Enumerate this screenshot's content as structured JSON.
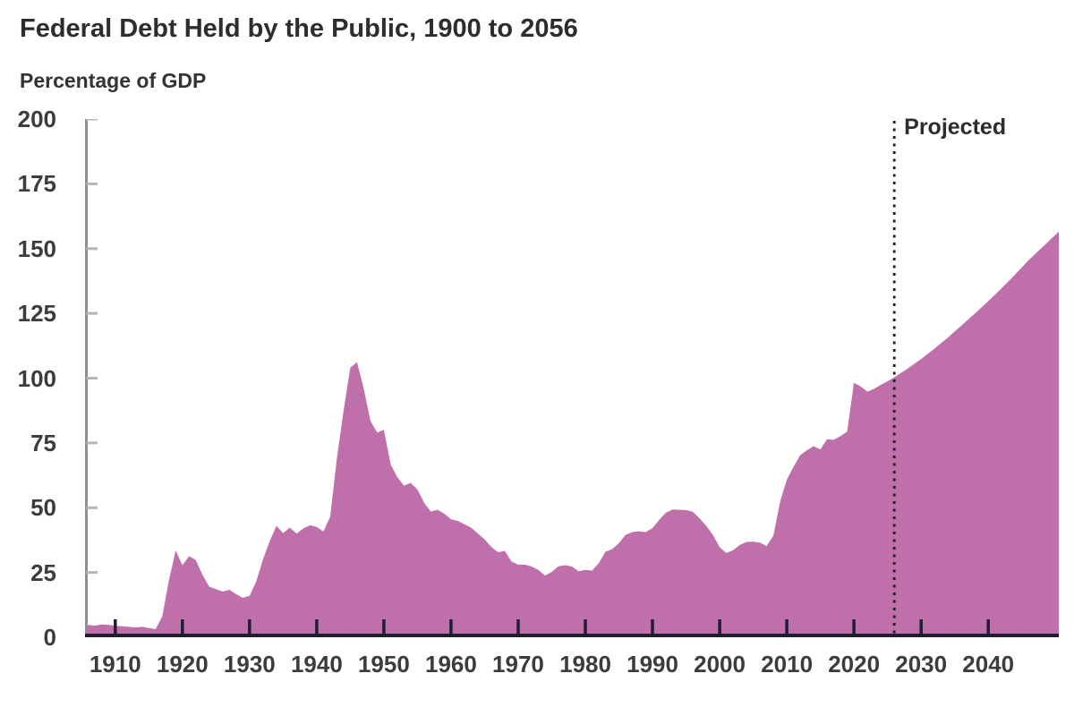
{
  "header": {
    "title": "Federal Debt Held by the Public, 1900 to 2056",
    "y_axis_title": "Percentage of GDP"
  },
  "chart_data": {
    "type": "area",
    "title": "Federal Debt Held by the Public, 1900 to 2056",
    "ylabel": "Percentage of GDP",
    "xlabel": "",
    "grid": false,
    "legend": "none",
    "ylim": [
      0,
      200
    ],
    "x_window": [
      1905.5,
      2050.5
    ],
    "projected_label": "Projected",
    "projected_year": 2026,
    "x_ticks": [
      1910,
      1920,
      1930,
      1940,
      1950,
      1960,
      1970,
      1980,
      1990,
      2000,
      2010,
      2020,
      2030,
      2040
    ],
    "x_tick_labels": [
      "1910",
      "1920",
      "1930",
      "1940",
      "1950",
      "1960",
      "1970",
      "1980",
      "1990",
      "2000",
      "2010",
      "2020",
      "2030",
      "2040"
    ],
    "y_tick_values": [
      200,
      175,
      150,
      125,
      100,
      75,
      50,
      25,
      0
    ],
    "y_tick_labels": [
      "200",
      "175",
      "150",
      "125",
      "100",
      "75",
      "50",
      "25",
      "0"
    ],
    "area_color": "#bf6fa9",
    "axis_color": "#221d35",
    "y_axis_color": "#8e8e8e",
    "y_tick_color": "#b5b5b5",
    "series": [
      {
        "name": "Federal debt held by the public (percentage of GDP)",
        "color": "#bf6fa9",
        "points": [
          [
            1900,
            6.3
          ],
          [
            1902,
            5.6
          ],
          [
            1904,
            5.0
          ],
          [
            1906,
            4.7
          ],
          [
            1907,
            4.5
          ],
          [
            1908,
            4.9
          ],
          [
            1909,
            4.8
          ],
          [
            1910,
            4.4
          ],
          [
            1911,
            4.2
          ],
          [
            1912,
            4.0
          ],
          [
            1913,
            3.8
          ],
          [
            1914,
            4.0
          ],
          [
            1915,
            3.6
          ],
          [
            1916,
            3.1
          ],
          [
            1917,
            8.0
          ],
          [
            1918,
            22.0
          ],
          [
            1919,
            33.5
          ],
          [
            1920,
            27.8
          ],
          [
            1921,
            31.3
          ],
          [
            1922,
            29.8
          ],
          [
            1923,
            24.0
          ],
          [
            1924,
            19.5
          ],
          [
            1925,
            18.6
          ],
          [
            1926,
            17.6
          ],
          [
            1927,
            18.3
          ],
          [
            1928,
            16.6
          ],
          [
            1929,
            15.2
          ],
          [
            1930,
            16.0
          ],
          [
            1931,
            21.5
          ],
          [
            1932,
            30.0
          ],
          [
            1933,
            37.0
          ],
          [
            1934,
            43.0
          ],
          [
            1935,
            40.2
          ],
          [
            1936,
            42.3
          ],
          [
            1937,
            40.0
          ],
          [
            1938,
            42.0
          ],
          [
            1939,
            43.2
          ],
          [
            1940,
            42.6
          ],
          [
            1941,
            40.8
          ],
          [
            1942,
            46.5
          ],
          [
            1943,
            69.0
          ],
          [
            1944,
            87.5
          ],
          [
            1945,
            104.0
          ],
          [
            1946,
            106.2
          ],
          [
            1947,
            96.0
          ],
          [
            1948,
            83.5
          ],
          [
            1949,
            79.0
          ],
          [
            1950,
            80.0
          ],
          [
            1951,
            66.8
          ],
          [
            1952,
            61.8
          ],
          [
            1953,
            58.5
          ],
          [
            1954,
            59.6
          ],
          [
            1955,
            57.0
          ],
          [
            1956,
            51.9
          ],
          [
            1957,
            48.5
          ],
          [
            1958,
            49.2
          ],
          [
            1959,
            47.7
          ],
          [
            1960,
            45.5
          ],
          [
            1961,
            44.9
          ],
          [
            1962,
            43.6
          ],
          [
            1963,
            42.3
          ],
          [
            1964,
            40.0
          ],
          [
            1965,
            37.8
          ],
          [
            1966,
            34.8
          ],
          [
            1967,
            32.8
          ],
          [
            1968,
            33.3
          ],
          [
            1969,
            29.2
          ],
          [
            1970,
            28.0
          ],
          [
            1971,
            28.0
          ],
          [
            1972,
            27.3
          ],
          [
            1973,
            26.0
          ],
          [
            1974,
            23.8
          ],
          [
            1975,
            25.2
          ],
          [
            1976,
            27.4
          ],
          [
            1977,
            27.8
          ],
          [
            1978,
            27.3
          ],
          [
            1979,
            25.5
          ],
          [
            1980,
            26.0
          ],
          [
            1981,
            25.7
          ],
          [
            1982,
            28.6
          ],
          [
            1983,
            33.0
          ],
          [
            1984,
            34.0
          ],
          [
            1985,
            36.3
          ],
          [
            1986,
            39.5
          ],
          [
            1987,
            40.6
          ],
          [
            1988,
            40.9
          ],
          [
            1989,
            40.6
          ],
          [
            1990,
            42.1
          ],
          [
            1991,
            45.3
          ],
          [
            1992,
            48.1
          ],
          [
            1993,
            49.3
          ],
          [
            1994,
            49.2
          ],
          [
            1995,
            49.1
          ],
          [
            1996,
            48.4
          ],
          [
            1997,
            45.9
          ],
          [
            1998,
            43.0
          ],
          [
            1999,
            39.4
          ],
          [
            2000,
            34.7
          ],
          [
            2001,
            32.5
          ],
          [
            2002,
            33.6
          ],
          [
            2003,
            35.6
          ],
          [
            2004,
            36.8
          ],
          [
            2005,
            36.9
          ],
          [
            2006,
            36.5
          ],
          [
            2007,
            35.2
          ],
          [
            2008,
            39.2
          ],
          [
            2009,
            52.3
          ],
          [
            2010,
            60.8
          ],
          [
            2011,
            65.8
          ],
          [
            2012,
            70.3
          ],
          [
            2013,
            72.2
          ],
          [
            2014,
            73.7
          ],
          [
            2015,
            72.5
          ],
          [
            2016,
            76.4
          ],
          [
            2017,
            76.2
          ],
          [
            2018,
            77.6
          ],
          [
            2019,
            79.4
          ],
          [
            2020,
            98.2
          ],
          [
            2021,
            96.8
          ],
          [
            2022,
            94.8
          ],
          [
            2023,
            95.9
          ],
          [
            2024,
            97.4
          ],
          [
            2025,
            98.8
          ],
          [
            2026,
            100.3
          ],
          [
            2028,
            103.7
          ],
          [
            2030,
            107.4
          ],
          [
            2032,
            111.4
          ],
          [
            2034,
            115.7
          ],
          [
            2036,
            120.3
          ],
          [
            2038,
            124.9
          ],
          [
            2040,
            129.7
          ],
          [
            2042,
            134.7
          ],
          [
            2044,
            140.0
          ],
          [
            2046,
            145.5
          ],
          [
            2048,
            150.4
          ],
          [
            2050,
            155.3
          ],
          [
            2051,
            157.8
          ]
        ]
      }
    ]
  }
}
